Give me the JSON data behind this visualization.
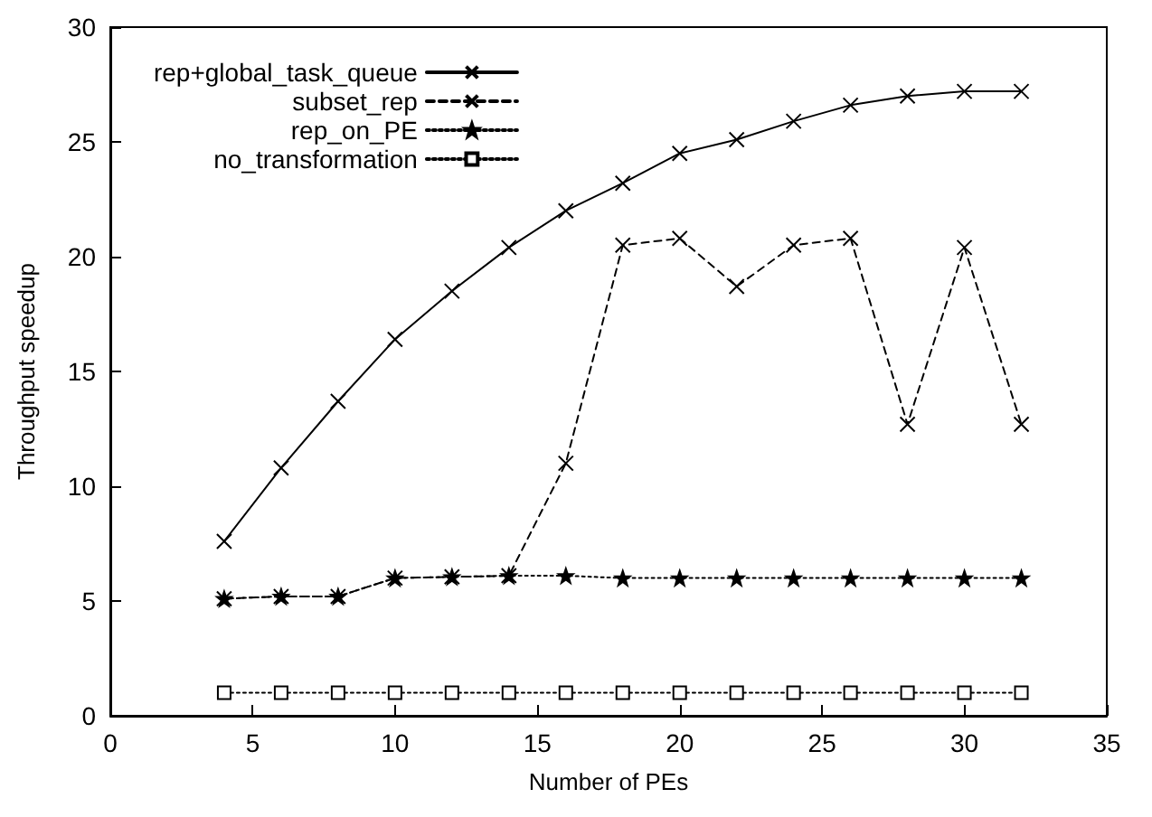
{
  "chart_data": {
    "type": "line",
    "xlabel": "Number of PEs",
    "ylabel": "Throughput speedup",
    "x": [
      4,
      6,
      8,
      10,
      12,
      14,
      16,
      18,
      20,
      22,
      24,
      26,
      28,
      30,
      32
    ],
    "xlim": [
      0,
      35
    ],
    "xticks": [
      0,
      5,
      10,
      15,
      20,
      25,
      30,
      35
    ],
    "ylim": [
      0,
      30
    ],
    "yticks": [
      0,
      5,
      10,
      15,
      20,
      25,
      30
    ],
    "grid": false,
    "legend": "top left",
    "series": [
      {
        "name": "rep+global_task_queue",
        "color": "#000000",
        "marker": "cross",
        "line_style": "solid",
        "values": [
          7.6,
          10.8,
          13.7,
          16.4,
          18.5,
          20.4,
          22.0,
          23.2,
          24.5,
          25.1,
          25.9,
          26.6,
          27.0,
          27.2,
          27.2
        ]
      },
      {
        "name": "subset_rep",
        "color": "#000000",
        "marker": "cross",
        "line_style": "dashed",
        "values": [
          5.1,
          5.2,
          5.2,
          6.0,
          6.05,
          6.1,
          11.0,
          20.5,
          20.8,
          18.7,
          20.5,
          20.8,
          12.7,
          20.4,
          12.7
        ]
      },
      {
        "name": "rep_on_PE",
        "color": "#000000",
        "marker": "star",
        "line_style": "dotted",
        "values": [
          5.1,
          5.2,
          5.2,
          6.0,
          6.05,
          6.1,
          6.1,
          6.0,
          6.0,
          6.0,
          6.0,
          6.0,
          6.0,
          6.0,
          6.0
        ]
      },
      {
        "name": "no_transformation",
        "color": "#000000",
        "marker": "square",
        "line_style": "dotted",
        "values": [
          1,
          1,
          1,
          1,
          1,
          1,
          1,
          1,
          1,
          1,
          1,
          1,
          1,
          1,
          1
        ]
      }
    ]
  }
}
